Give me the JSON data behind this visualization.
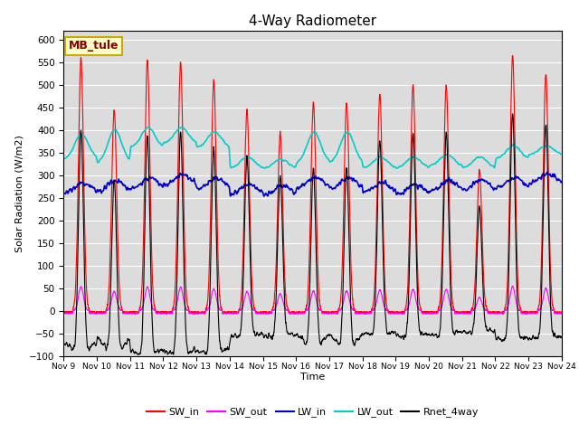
{
  "title": "4-Way Radiometer",
  "ylabel": "Solar Radiation (W/m2)",
  "xlabel": "Time",
  "station_label": "MB_tule",
  "ylim": [
    -100,
    620
  ],
  "yticks": [
    -100,
    -50,
    0,
    50,
    100,
    150,
    200,
    250,
    300,
    350,
    400,
    450,
    500,
    550,
    600
  ],
  "num_days": 15,
  "points_per_day": 288,
  "colors": {
    "SW_in": "#ff0000",
    "SW_out": "#ff00ff",
    "LW_in": "#0000cc",
    "LW_out": "#00cccc",
    "Rnet_4way": "#000000"
  },
  "bg_color": "#dcdcdc",
  "fig_bg": "#ffffff",
  "sw_in_peaks": [
    560,
    445,
    555,
    550,
    510,
    445,
    395,
    460,
    460,
    480,
    500,
    500,
    310,
    565,
    525
  ],
  "lw_out_day_peaks": [
    390,
    400,
    405,
    405,
    395,
    340,
    335,
    395,
    395,
    340,
    340,
    345,
    340,
    365,
    365
  ],
  "lw_out_night": [
    335,
    325,
    360,
    370,
    360,
    315,
    315,
    325,
    325,
    315,
    315,
    320,
    315,
    335,
    345
  ],
  "lw_in_base": [
    258,
    262,
    268,
    275,
    268,
    255,
    252,
    270,
    268,
    258,
    254,
    262,
    264,
    268,
    278
  ],
  "rnet_night": [
    -75,
    -75,
    -80,
    -82,
    -78,
    -72,
    -68,
    -75,
    -72,
    -70,
    -68,
    -70,
    -68,
    -75,
    -72
  ]
}
